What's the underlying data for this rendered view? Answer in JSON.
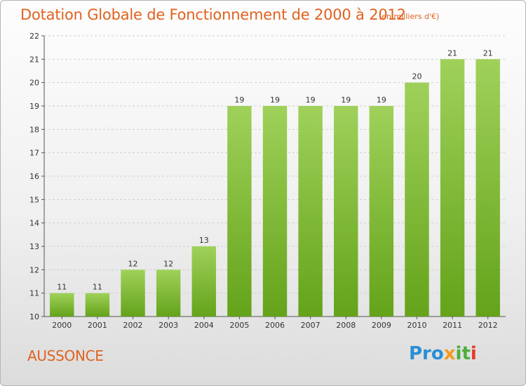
{
  "title": "Dotation Globale de Fonctionnement de 2000 à 2012",
  "subtitle": "(en milliers d'€)",
  "location": "AUSSONCE",
  "logo": {
    "text": "Proxiti",
    "parts": [
      "Pro",
      "x",
      "it",
      "i"
    ],
    "colors": [
      "#2a8ed6",
      "#f29a1e",
      "#4cae3c",
      "#e8382d"
    ]
  },
  "colors": {
    "bar_top": "#9fd15a",
    "bar_bottom": "#64a31a",
    "title": "#e0621f",
    "grid": "#cfcfcf"
  },
  "chart_data": {
    "type": "bar",
    "title": "Dotation Globale de Fonctionnement de 2000 à 2012",
    "subtitle": "(en milliers d'€)",
    "xlabel": "",
    "ylabel": "",
    "categories": [
      "2000",
      "2001",
      "2002",
      "2003",
      "2004",
      "2005",
      "2006",
      "2007",
      "2008",
      "2009",
      "2010",
      "2011",
      "2012"
    ],
    "values": [
      11,
      11,
      12,
      12,
      13,
      19,
      19,
      19,
      19,
      19,
      20,
      21,
      21
    ],
    "data_labels": [
      "11",
      "11",
      "12",
      "12",
      "13",
      "19",
      "19",
      "19",
      "19",
      "19",
      "20",
      "21",
      "21"
    ],
    "ylim": [
      10,
      22
    ],
    "yticks": [
      10,
      11,
      12,
      13,
      14,
      15,
      16,
      17,
      18,
      19,
      20,
      21,
      22
    ],
    "grid": true,
    "legend": "none"
  }
}
